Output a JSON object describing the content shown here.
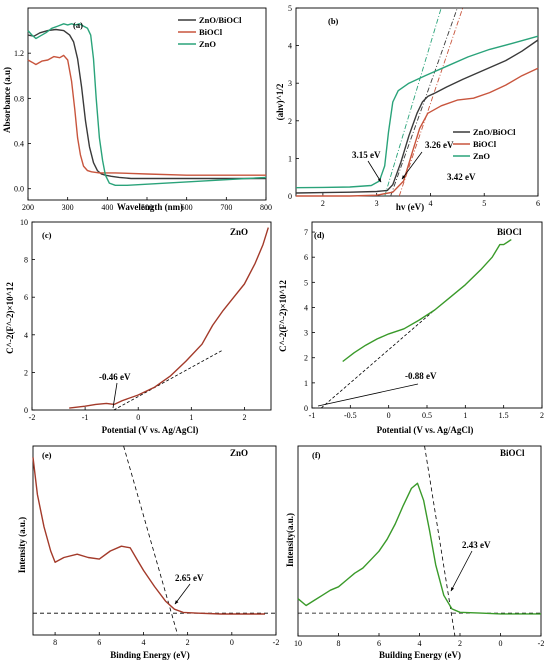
{
  "chart_data": [
    {
      "type": "line",
      "panel": "(a)",
      "xlabel": "Wavelength (nm)",
      "ylabel": "Absorbance (a.u)",
      "xlim": [
        200,
        800
      ],
      "ylim": [
        -0.1,
        1.6
      ],
      "xticks": [
        200,
        300,
        400,
        500,
        600,
        700,
        800
      ],
      "yticks": [
        0.0,
        0.4,
        0.8,
        1.2
      ],
      "ytick_labels": [
        "0.0",
        "0.4",
        "0.8",
        "1.2"
      ],
      "legend": "top-right",
      "series": [
        {
          "name": "ZnO/BiOCl",
          "color": "#3a3a3a",
          "x": [
            200,
            215,
            230,
            250,
            270,
            290,
            305,
            315,
            325,
            335,
            345,
            355,
            365,
            375,
            385,
            395,
            410,
            430,
            460,
            500,
            560,
            620,
            700,
            800
          ],
          "y": [
            1.36,
            1.35,
            1.38,
            1.4,
            1.41,
            1.4,
            1.36,
            1.3,
            1.15,
            0.9,
            0.6,
            0.37,
            0.23,
            0.16,
            0.13,
            0.12,
            0.11,
            0.1,
            0.09,
            0.09,
            0.09,
            0.09,
            0.09,
            0.09
          ]
        },
        {
          "name": "BiOCl",
          "color": "#c8553d",
          "x": [
            200,
            210,
            220,
            235,
            250,
            265,
            280,
            290,
            300,
            310,
            318,
            325,
            332,
            340,
            350,
            360,
            380,
            420,
            500,
            600,
            700,
            800
          ],
          "y": [
            1.14,
            1.12,
            1.1,
            1.13,
            1.14,
            1.17,
            1.16,
            1.18,
            1.14,
            0.95,
            0.7,
            0.45,
            0.3,
            0.2,
            0.16,
            0.15,
            0.14,
            0.14,
            0.13,
            0.12,
            0.12,
            0.12
          ]
        },
        {
          "name": "ZnO",
          "color": "#2aa37a",
          "x": [
            200,
            210,
            220,
            230,
            245,
            260,
            275,
            290,
            300,
            310,
            320,
            330,
            340,
            350,
            358,
            365,
            372,
            380,
            388,
            395,
            405,
            420,
            450,
            500,
            550,
            600,
            700,
            800
          ],
          "y": [
            1.4,
            1.36,
            1.33,
            1.35,
            1.38,
            1.42,
            1.44,
            1.46,
            1.45,
            1.46,
            1.45,
            1.46,
            1.44,
            1.42,
            1.36,
            1.15,
            0.8,
            0.45,
            0.25,
            0.12,
            0.05,
            0.03,
            0.03,
            0.04,
            0.05,
            0.06,
            0.08,
            0.1
          ]
        }
      ]
    },
    {
      "type": "line",
      "panel": "(b)",
      "xlabel": "hv (eV)",
      "ylabel": "(ahv)^1/2",
      "xlim": [
        1.5,
        6
      ],
      "ylim": [
        0,
        5
      ],
      "xticks": [
        2,
        3,
        4,
        5,
        6
      ],
      "yticks": [
        0,
        1,
        2,
        3,
        4,
        5
      ],
      "legend": "bottom-right",
      "series": [
        {
          "name": "ZnO/BiOCl",
          "color": "#3a3a3a",
          "x": [
            1.5,
            2.0,
            2.5,
            3.0,
            3.2,
            3.3,
            3.45,
            3.6,
            3.75,
            3.85,
            3.95,
            4.1,
            4.3,
            4.6,
            5.0,
            5.4,
            5.7,
            6.0
          ],
          "y": [
            0.08,
            0.09,
            0.1,
            0.12,
            0.15,
            0.3,
            0.9,
            1.6,
            2.2,
            2.5,
            2.65,
            2.75,
            2.9,
            3.1,
            3.35,
            3.6,
            3.85,
            4.15
          ]
        },
        {
          "name": "BiOCl",
          "color": "#c8553d",
          "x": [
            1.5,
            2.0,
            2.5,
            3.0,
            3.3,
            3.5,
            3.65,
            3.8,
            3.95,
            4.2,
            4.5,
            4.8,
            5.1,
            5.4,
            5.7,
            6.0
          ],
          "y": [
            0.0,
            0.0,
            0.0,
            0.02,
            0.1,
            0.4,
            1.1,
            1.8,
            2.2,
            2.4,
            2.55,
            2.6,
            2.75,
            2.95,
            3.2,
            3.4
          ]
        },
        {
          "name": "ZnO",
          "color": "#2aa37a",
          "x": [
            1.5,
            2.0,
            2.5,
            2.9,
            3.05,
            3.15,
            3.22,
            3.3,
            3.4,
            3.6,
            3.9,
            4.3,
            4.7,
            5.1,
            5.5,
            6.0
          ],
          "y": [
            0.22,
            0.23,
            0.24,
            0.28,
            0.4,
            0.8,
            1.7,
            2.5,
            2.8,
            3.0,
            3.2,
            3.45,
            3.7,
            3.9,
            4.05,
            4.25
          ]
        }
      ],
      "tangents": [
        {
          "color": "#2aa37a",
          "x": [
            3.15,
            4.2
          ]
        },
        {
          "color": "#3a3a3a",
          "x": [
            3.26,
            4.5
          ]
        },
        {
          "color": "#c8553d",
          "x": [
            3.42,
            4.6
          ]
        }
      ],
      "annotations": [
        "3.15 eV",
        "3.26 eV",
        "3.42 eV"
      ]
    },
    {
      "type": "line",
      "panel": "(c)",
      "title": "ZnO",
      "xlabel": "Potential (V vs. Ag/AgCl)",
      "ylabel": "C^-2(F^-2)×10^12",
      "xlim": [
        -2,
        2.5
      ],
      "ylim": [
        0,
        10
      ],
      "xticks": [
        -2,
        -1,
        0,
        1,
        2
      ],
      "yticks": [
        0,
        2,
        4,
        6,
        8,
        10
      ],
      "series": [
        {
          "name": "ZnO",
          "color": "#a33a2a",
          "x": [
            -1.3,
            -1.0,
            -0.8,
            -0.6,
            -0.45,
            -0.3,
            0.0,
            0.3,
            0.6,
            0.9,
            1.2,
            1.4,
            1.6,
            1.8,
            2.0,
            2.2,
            2.35,
            2.45
          ],
          "y": [
            0.1,
            0.2,
            0.3,
            0.35,
            0.3,
            0.5,
            0.8,
            1.2,
            1.8,
            2.6,
            3.5,
            4.5,
            5.3,
            6.0,
            6.7,
            7.8,
            8.8,
            9.7
          ]
        }
      ],
      "annotations": [
        "-0.46 eV"
      ]
    },
    {
      "type": "line",
      "panel": "(d)",
      "title": "BiOCl",
      "xlabel": "Potential (V vs. Ag/AgCl)",
      "ylabel": "C^-2(F^-2)×10^12",
      "xlim": [
        -1.0,
        2.0
      ],
      "ylim": [
        0,
        7.4
      ],
      "xticks": [
        -1.0,
        -0.5,
        0.0,
        0.5,
        1.0,
        1.5,
        2.0
      ],
      "yticks": [
        0,
        1,
        2,
        3,
        4,
        5,
        6,
        7
      ],
      "series": [
        {
          "name": "BiOCl",
          "color": "#3a9a2a",
          "x": [
            -0.6,
            -0.45,
            -0.3,
            -0.15,
            0.0,
            0.2,
            0.4,
            0.6,
            0.8,
            1.0,
            1.2,
            1.35,
            1.45,
            1.5,
            1.6
          ],
          "y": [
            1.85,
            2.2,
            2.5,
            2.75,
            2.95,
            3.15,
            3.5,
            3.9,
            4.4,
            4.9,
            5.5,
            6.0,
            6.5,
            6.5,
            6.7
          ]
        }
      ],
      "annotations": [
        "-0.88 eV"
      ]
    },
    {
      "type": "line",
      "panel": "(e)",
      "title": "ZnO",
      "xlabel": "Binding Energy (eV)",
      "ylabel": "Intensity (a.u.)",
      "xlim": [
        9,
        -2
      ],
      "xticks": [
        8,
        6,
        4,
        2,
        0,
        -2
      ],
      "series": [
        {
          "name": "ZnO",
          "color": "#a33a2a",
          "x": [
            9.0,
            8.8,
            8.5,
            8.2,
            8.0,
            7.6,
            7.0,
            6.5,
            6.0,
            5.5,
            5.0,
            4.6,
            4.3,
            4.0,
            3.5,
            3.0,
            2.6,
            2.2,
            1.5,
            0.5,
            -0.5,
            -1.5
          ],
          "y": [
            0.98,
            0.75,
            0.55,
            0.4,
            0.33,
            0.36,
            0.38,
            0.36,
            0.35,
            0.4,
            0.43,
            0.42,
            0.35,
            0.28,
            0.18,
            0.09,
            0.04,
            0.02,
            0.015,
            0.01,
            0.01,
            0.01
          ]
        }
      ],
      "annotations": [
        "2.65 eV"
      ]
    },
    {
      "type": "line",
      "panel": "(f)",
      "title": "BiOCl",
      "xlabel": "Building Energy (eV)",
      "ylabel": "Intensity(a.u.)",
      "xlim": [
        10,
        -2
      ],
      "xticks": [
        10,
        8,
        6,
        4,
        2,
        0,
        -2
      ],
      "series": [
        {
          "name": "BiOCl",
          "color": "#3a9a2a",
          "x": [
            10.0,
            9.6,
            9.2,
            8.8,
            8.4,
            8.0,
            7.6,
            7.2,
            6.8,
            6.4,
            6.0,
            5.6,
            5.2,
            4.8,
            4.4,
            4.1,
            3.8,
            3.5,
            3.2,
            2.8,
            2.4,
            2.0,
            1.0,
            0.0,
            -1.0,
            -2.0
          ],
          "y": [
            0.1,
            0.06,
            0.09,
            0.12,
            0.15,
            0.17,
            0.21,
            0.25,
            0.28,
            0.33,
            0.38,
            0.45,
            0.54,
            0.65,
            0.75,
            0.78,
            0.68,
            0.5,
            0.3,
            0.12,
            0.04,
            0.02,
            0.015,
            0.01,
            0.01,
            0.01
          ]
        }
      ],
      "annotations": [
        "2.43 eV"
      ]
    }
  ]
}
